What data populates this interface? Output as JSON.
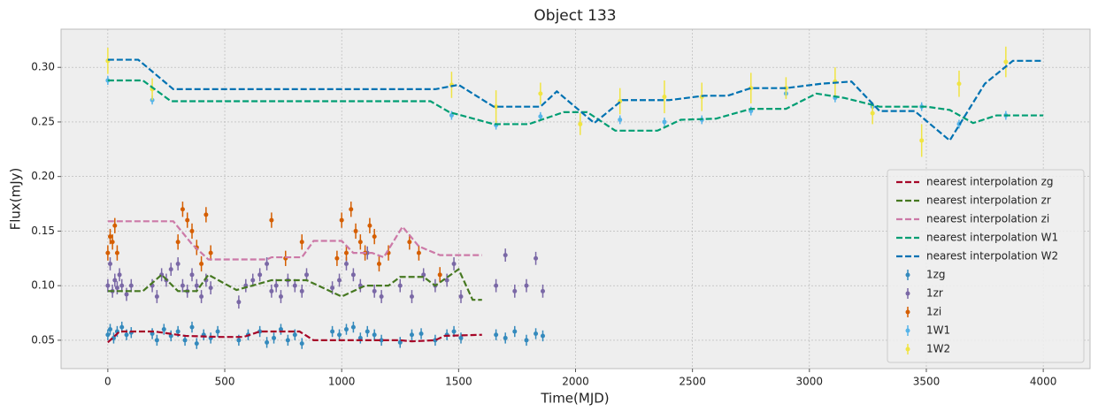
{
  "chart_data": {
    "type": "errorbar",
    "title": "Object 133",
    "xlabel": "Time(MJD)",
    "ylabel": "Flux(mJy)",
    "xlim": [
      -200,
      4200
    ],
    "ylim": [
      0.024,
      0.335
    ],
    "xticks": [
      0,
      500,
      1000,
      1500,
      2000,
      2500,
      3000,
      3500,
      4000
    ],
    "yticks": [
      {
        "value": 0.05,
        "label": "0.05"
      },
      {
        "value": 0.1,
        "label": "0.10"
      },
      {
        "value": 0.15,
        "label": "0.15"
      },
      {
        "value": 0.2,
        "label": "0.20"
      },
      {
        "value": 0.25,
        "label": "0.25"
      },
      {
        "value": 0.3,
        "label": "0.30"
      }
    ],
    "grid": true,
    "legend": "lower right",
    "lines": [
      {
        "name": "nearest interpolation zg",
        "color": "#A60628",
        "x": [
          0,
          50,
          200,
          330,
          480,
          580,
          650,
          820,
          880,
          1250,
          1300,
          1400,
          1440,
          1600
        ],
        "values": [
          0.048,
          0.058,
          0.058,
          0.054,
          0.053,
          0.053,
          0.058,
          0.058,
          0.05,
          0.05,
          0.049,
          0.05,
          0.054,
          0.055
        ]
      },
      {
        "name": "nearest interpolation zr",
        "color": "#467821",
        "x": [
          0,
          150,
          230,
          300,
          380,
          430,
          550,
          700,
          850,
          1000,
          1100,
          1200,
          1250,
          1350,
          1400,
          1500,
          1560,
          1600
        ],
        "values": [
          0.095,
          0.095,
          0.11,
          0.095,
          0.095,
          0.11,
          0.096,
          0.105,
          0.105,
          0.09,
          0.1,
          0.1,
          0.108,
          0.108,
          0.1,
          0.115,
          0.087,
          0.087
        ]
      },
      {
        "name": "nearest interpolation zi",
        "color": "#CC79A7",
        "x": [
          0,
          280,
          360,
          430,
          680,
          700,
          830,
          880,
          1000,
          1050,
          1130,
          1180,
          1260,
          1330,
          1420,
          1600
        ],
        "values": [
          0.159,
          0.159,
          0.138,
          0.124,
          0.124,
          0.126,
          0.126,
          0.141,
          0.141,
          0.13,
          0.13,
          0.126,
          0.154,
          0.136,
          0.128,
          0.128
        ]
      },
      {
        "name": "nearest interpolation W1",
        "color": "#009E73",
        "x": [
          0,
          150,
          270,
          1380,
          1460,
          1650,
          1800,
          1950,
          2050,
          2170,
          2350,
          2450,
          2600,
          2750,
          2900,
          3030,
          3150,
          3300,
          3500,
          3600,
          3700,
          3800,
          4000
        ],
        "values": [
          0.288,
          0.288,
          0.269,
          0.269,
          0.259,
          0.248,
          0.248,
          0.259,
          0.259,
          0.242,
          0.242,
          0.252,
          0.253,
          0.262,
          0.262,
          0.276,
          0.272,
          0.264,
          0.264,
          0.261,
          0.249,
          0.256,
          0.256
        ]
      },
      {
        "name": "nearest interpolation W2",
        "color": "#0072B2",
        "x": [
          0,
          130,
          280,
          1400,
          1500,
          1650,
          1850,
          1920,
          2080,
          2200,
          2400,
          2550,
          2650,
          2750,
          2900,
          3050,
          3180,
          3300,
          3450,
          3600,
          3750,
          3870,
          4000
        ],
        "values": [
          0.307,
          0.307,
          0.28,
          0.28,
          0.284,
          0.264,
          0.264,
          0.278,
          0.249,
          0.27,
          0.27,
          0.274,
          0.274,
          0.281,
          0.281,
          0.285,
          0.287,
          0.26,
          0.26,
          0.233,
          0.285,
          0.306,
          0.306
        ]
      }
    ],
    "series": [
      {
        "name": "1zg",
        "color": "#348ABD",
        "x": [
          0,
          10,
          25,
          40,
          60,
          80,
          100,
          190,
          210,
          240,
          270,
          300,
          330,
          360,
          380,
          410,
          440,
          470,
          560,
          600,
          650,
          680,
          710,
          740,
          770,
          800,
          830,
          960,
          990,
          1020,
          1050,
          1080,
          1110,
          1140,
          1170,
          1250,
          1300,
          1340,
          1400,
          1450,
          1480,
          1510,
          1660,
          1700,
          1740,
          1790,
          1830,
          1860
        ],
        "values": [
          0.055,
          0.06,
          0.052,
          0.058,
          0.062,
          0.055,
          0.057,
          0.056,
          0.05,
          0.06,
          0.054,
          0.058,
          0.05,
          0.062,
          0.047,
          0.055,
          0.052,
          0.058,
          0.05,
          0.055,
          0.058,
          0.048,
          0.052,
          0.06,
          0.05,
          0.055,
          0.047,
          0.058,
          0.055,
          0.06,
          0.062,
          0.052,
          0.058,
          0.055,
          0.05,
          0.048,
          0.055,
          0.056,
          0.05,
          0.055,
          0.058,
          0.052,
          0.055,
          0.052,
          0.058,
          0.05,
          0.056,
          0.054
        ],
        "errors": [
          0.005,
          0.005,
          0.005,
          0.005,
          0.005,
          0.005,
          0.005,
          0.005,
          0.005,
          0.005,
          0.005,
          0.005,
          0.005,
          0.005,
          0.005,
          0.005,
          0.005,
          0.005,
          0.005,
          0.005,
          0.005,
          0.005,
          0.005,
          0.005,
          0.005,
          0.005,
          0.005,
          0.005,
          0.005,
          0.005,
          0.005,
          0.005,
          0.005,
          0.005,
          0.005,
          0.005,
          0.005,
          0.005,
          0.005,
          0.005,
          0.005,
          0.005,
          0.005,
          0.005,
          0.005,
          0.005,
          0.005,
          0.005
        ]
      },
      {
        "name": "1zr",
        "color": "#7A68A6",
        "x": [
          0,
          10,
          20,
          30,
          40,
          50,
          60,
          80,
          100,
          190,
          210,
          230,
          250,
          270,
          300,
          320,
          340,
          360,
          380,
          400,
          420,
          440,
          560,
          590,
          620,
          650,
          680,
          700,
          720,
          740,
          770,
          800,
          830,
          850,
          960,
          990,
          1020,
          1050,
          1080,
          1110,
          1140,
          1170,
          1250,
          1300,
          1350,
          1400,
          1450,
          1480,
          1510,
          1660,
          1700,
          1740,
          1790,
          1830,
          1860
        ],
        "values": [
          0.1,
          0.12,
          0.095,
          0.105,
          0.098,
          0.11,
          0.1,
          0.092,
          0.1,
          0.1,
          0.09,
          0.11,
          0.105,
          0.115,
          0.12,
          0.1,
          0.095,
          0.11,
          0.1,
          0.09,
          0.105,
          0.098,
          0.085,
          0.1,
          0.105,
          0.11,
          0.12,
          0.095,
          0.1,
          0.09,
          0.105,
          0.1,
          0.095,
          0.11,
          0.098,
          0.105,
          0.12,
          0.11,
          0.1,
          0.13,
          0.095,
          0.09,
          0.1,
          0.09,
          0.11,
          0.1,
          0.105,
          0.12,
          0.09,
          0.1,
          0.128,
          0.095,
          0.1,
          0.125,
          0.095
        ],
        "errors": [
          0.006,
          0.006,
          0.006,
          0.006,
          0.006,
          0.006,
          0.006,
          0.006,
          0.006,
          0.006,
          0.006,
          0.006,
          0.006,
          0.006,
          0.006,
          0.006,
          0.006,
          0.006,
          0.006,
          0.006,
          0.006,
          0.006,
          0.006,
          0.006,
          0.006,
          0.006,
          0.006,
          0.006,
          0.006,
          0.006,
          0.006,
          0.006,
          0.006,
          0.006,
          0.006,
          0.006,
          0.006,
          0.006,
          0.006,
          0.006,
          0.006,
          0.006,
          0.006,
          0.006,
          0.006,
          0.006,
          0.006,
          0.006,
          0.006,
          0.006,
          0.006,
          0.006,
          0.006,
          0.006,
          0.006
        ]
      },
      {
        "name": "1zi",
        "color": "#D55E00",
        "x": [
          0,
          10,
          20,
          30,
          40,
          300,
          320,
          340,
          360,
          380,
          400,
          420,
          440,
          700,
          760,
          830,
          980,
          1000,
          1020,
          1040,
          1060,
          1080,
          1100,
          1120,
          1140,
          1160,
          1200,
          1290,
          1330,
          1420
        ],
        "values": [
          0.13,
          0.145,
          0.14,
          0.155,
          0.13,
          0.14,
          0.17,
          0.16,
          0.15,
          0.135,
          0.12,
          0.165,
          0.13,
          0.16,
          0.125,
          0.14,
          0.125,
          0.16,
          0.13,
          0.17,
          0.15,
          0.14,
          0.13,
          0.155,
          0.145,
          0.12,
          0.13,
          0.14,
          0.13,
          0.11
        ],
        "errors": [
          0.007,
          0.007,
          0.007,
          0.007,
          0.007,
          0.007,
          0.007,
          0.007,
          0.007,
          0.007,
          0.007,
          0.007,
          0.007,
          0.007,
          0.007,
          0.007,
          0.007,
          0.007,
          0.007,
          0.007,
          0.007,
          0.007,
          0.007,
          0.007,
          0.007,
          0.007,
          0.007,
          0.007,
          0.007,
          0.007
        ]
      },
      {
        "name": "1W1",
        "color": "#56B4E9",
        "x": [
          0,
          190,
          1470,
          1660,
          1850,
          2190,
          2380,
          2540,
          2750,
          2900,
          3110,
          3270,
          3480,
          3640,
          3840
        ],
        "values": [
          0.288,
          0.27,
          0.256,
          0.247,
          0.255,
          0.252,
          0.25,
          0.252,
          0.26,
          0.276,
          0.272,
          0.264,
          0.264,
          0.248,
          0.256
        ],
        "errors": [
          0.004,
          0.004,
          0.004,
          0.004,
          0.004,
          0.004,
          0.004,
          0.004,
          0.004,
          0.004,
          0.004,
          0.004,
          0.004,
          0.004,
          0.004
        ]
      },
      {
        "name": "1W2",
        "color": "#F0E442",
        "x": [
          0,
          190,
          1470,
          1660,
          1850,
          2020,
          2190,
          2380,
          2540,
          2750,
          2900,
          3110,
          3270,
          3480,
          3640,
          3840
        ],
        "values": [
          0.306,
          0.28,
          0.284,
          0.264,
          0.276,
          0.248,
          0.269,
          0.273,
          0.273,
          0.281,
          0.281,
          0.287,
          0.258,
          0.233,
          0.285,
          0.305
        ],
        "errors": [
          0.012,
          0.01,
          0.012,
          0.015,
          0.01,
          0.01,
          0.012,
          0.015,
          0.013,
          0.014,
          0.01,
          0.013,
          0.01,
          0.015,
          0.012,
          0.014
        ]
      }
    ]
  }
}
